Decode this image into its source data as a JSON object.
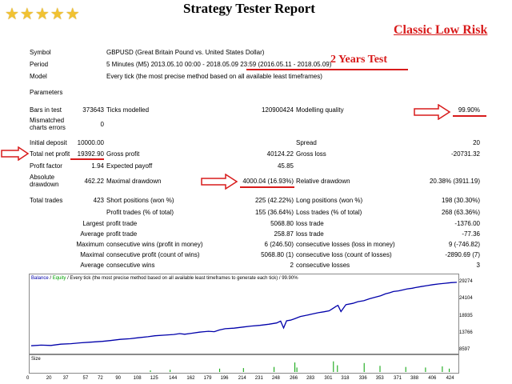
{
  "report": {
    "title": "Strategy Tester Report",
    "stars": "★★★★★",
    "classic_label": "Classic Low Risk",
    "years_label": "2 Years Test"
  },
  "header": {
    "symbol_label": "Symbol",
    "symbol_value": "GBPUSD (Great Britain Pound vs. United States Dollar)",
    "period_label": "Period",
    "period_value": "5 Minutes (M5) 2013.05.10 00:00 - 2018.05.09 23:59 (2016.05.11 - 2018.05.09)",
    "model_label": "Model",
    "model_value": "Every tick (the most precise method based on all available least timeframes)",
    "parameters_label": "Parameters"
  },
  "stats": {
    "bars_label": "Bars in test",
    "bars_value": "373643",
    "ticks_label": "Ticks modelled",
    "ticks_value": "120900424",
    "quality_label": "Modelling quality",
    "quality_value": "99.90%",
    "mismatch_label_1": "Mismatched",
    "mismatch_label_2": "charts errors",
    "mismatch_value": "0",
    "deposit_label": "Initial deposit",
    "deposit_value": "10000.00",
    "spread_label": "Spread",
    "spread_value": "20",
    "netprofit_label": "Total net profit",
    "netprofit_value": "19392.90",
    "grossprofit_label": "Gross profit",
    "grossprofit_value": "40124.22",
    "grossloss_label": "Gross loss",
    "grossloss_value": "-20731.32",
    "pf_label": "Profit factor",
    "pf_value": "1.94",
    "payoff_label": "Expected payoff",
    "payoff_value": "45.85",
    "absdd_label_1": "Absolute",
    "absdd_label_2": "drawdown",
    "absdd_value": "462.22",
    "maxdd_label": "Maximal drawdown",
    "maxdd_value": "4000.04 (16.93%)",
    "reldd_label": "Relative drawdown",
    "reldd_value": "20.38% (3911.19)",
    "trades_label": "Total trades",
    "trades_value": "423",
    "short_label": "Short positions (won %)",
    "short_value": "225 (42.22%)",
    "long_label": "Long positions (won %)",
    "long_value": "198 (30.30%)",
    "ptrades_label": "Profit trades (% of total)",
    "ptrades_value": "155 (36.64%)",
    "ltrades_label": "Loss trades (% of total)",
    "ltrades_value": "268 (63.36%)",
    "largest_label": "Largest",
    "largest_p_label": "profit trade",
    "largest_p_value": "5068.80",
    "largest_l_label": "loss trade",
    "largest_l_value": "-1376.00",
    "average_label": "Average",
    "avg_p_label": "profit trade",
    "avg_p_value": "258.87",
    "avg_l_label": "loss trade",
    "avg_l_value": "-77.36",
    "maximum_label": "Maximum",
    "maxwins_label": "consecutive wins (profit in money)",
    "maxwins_value": "6 (246.50)",
    "maxloss_label": "consecutive losses (loss in money)",
    "maxloss_value": "9 (-746.82)",
    "maximal_label": "Maximal",
    "maxprofit_label": "consecutive profit (count of wins)",
    "maxprofit_value": "5068.80 (1)",
    "maxlosscnt_label": "consecutive loss (count of losses)",
    "maxlosscnt_value": "-2890.69 (7)",
    "average2_label": "Average",
    "avgwins_label": "consecutive wins",
    "avgwins_value": "2",
    "avglosses_label": "consecutive losses",
    "avglosses_value": "3"
  },
  "chart_legend": {
    "balance": "Balance",
    "sep1": "/",
    "equity": "Equity",
    "rest": "/ Every tick (the most precise method based on all available least timeframes to generate each tick) / 99.90%",
    "size_label": "Size"
  },
  "colors": {
    "balance": "#0000aa",
    "equity": "#00a000",
    "accent": "#d81b1b"
  },
  "chart_data": {
    "type": "line",
    "yticks": [
      "29274",
      "24104",
      "18935",
      "13766",
      "8597"
    ],
    "y_tick_values": [
      29274,
      24104,
      18935,
      13766,
      8597
    ],
    "xticks": [
      "0",
      "20",
      "37",
      "57",
      "72",
      "90",
      "108",
      "125",
      "144",
      "162",
      "179",
      "196",
      "214",
      "231",
      "248",
      "266",
      "283",
      "301",
      "318",
      "336",
      "353",
      "371",
      "388",
      "406",
      "424"
    ],
    "x_tick_values": [
      0,
      20,
      37,
      57,
      72,
      90,
      108,
      125,
      144,
      162,
      179,
      196,
      214,
      231,
      248,
      266,
      283,
      301,
      318,
      336,
      353,
      371,
      388,
      406,
      424
    ],
    "ylim": [
      8597,
      29274
    ],
    "xlim": [
      0,
      430
    ],
    "series": [
      {
        "name": "Balance",
        "x": [
          0,
          10,
          20,
          30,
          40,
          50,
          60,
          72,
          80,
          90,
          100,
          108,
          118,
          125,
          135,
          144,
          150,
          155,
          162,
          170,
          179,
          185,
          190,
          196,
          205,
          214,
          222,
          231,
          240,
          248,
          252,
          255,
          258,
          262,
          266,
          272,
          276,
          280,
          283,
          290,
          296,
          301,
          305,
          308,
          310,
          313,
          318,
          325,
          330,
          336,
          342,
          348,
          353,
          358,
          362,
          366,
          371,
          376,
          380,
          385,
          388,
          394,
          400,
          406,
          412,
          418,
          424,
          430
        ],
        "y": [
          10000,
          10200,
          10100,
          10500,
          10650,
          10900,
          11100,
          11350,
          11600,
          11950,
          12150,
          12450,
          12750,
          13050,
          13250,
          13450,
          13700,
          13500,
          13800,
          14150,
          14400,
          14300,
          14800,
          15200,
          15350,
          15700,
          16000,
          16200,
          16550,
          16950,
          17500,
          15400,
          17600,
          17800,
          18200,
          18900,
          19150,
          19400,
          19600,
          20050,
          20350,
          20650,
          21400,
          22000,
          22300,
          20400,
          22500,
          22900,
          23400,
          23700,
          24300,
          24800,
          25200,
          25800,
          26100,
          26500,
          26700,
          27000,
          27300,
          27500,
          27700,
          28000,
          28300,
          28600,
          28800,
          29000,
          29200,
          29300
        ]
      }
    ],
    "size_bars": [
      {
        "x": 266,
        "h": 0.85
      },
      {
        "x": 268,
        "h": 0.4
      },
      {
        "x": 305,
        "h": 0.95
      },
      {
        "x": 309,
        "h": 0.6
      },
      {
        "x": 336,
        "h": 0.8
      },
      {
        "x": 245,
        "h": 0.45
      },
      {
        "x": 214,
        "h": 0.35
      },
      {
        "x": 190,
        "h": 0.3
      },
      {
        "x": 140,
        "h": 0.2
      },
      {
        "x": 352,
        "h": 0.55
      },
      {
        "x": 378,
        "h": 0.45
      },
      {
        "x": 398,
        "h": 0.4
      },
      {
        "x": 415,
        "h": 0.5
      },
      {
        "x": 422,
        "h": 0.3
      },
      {
        "x": 120,
        "h": 0.15
      }
    ]
  }
}
